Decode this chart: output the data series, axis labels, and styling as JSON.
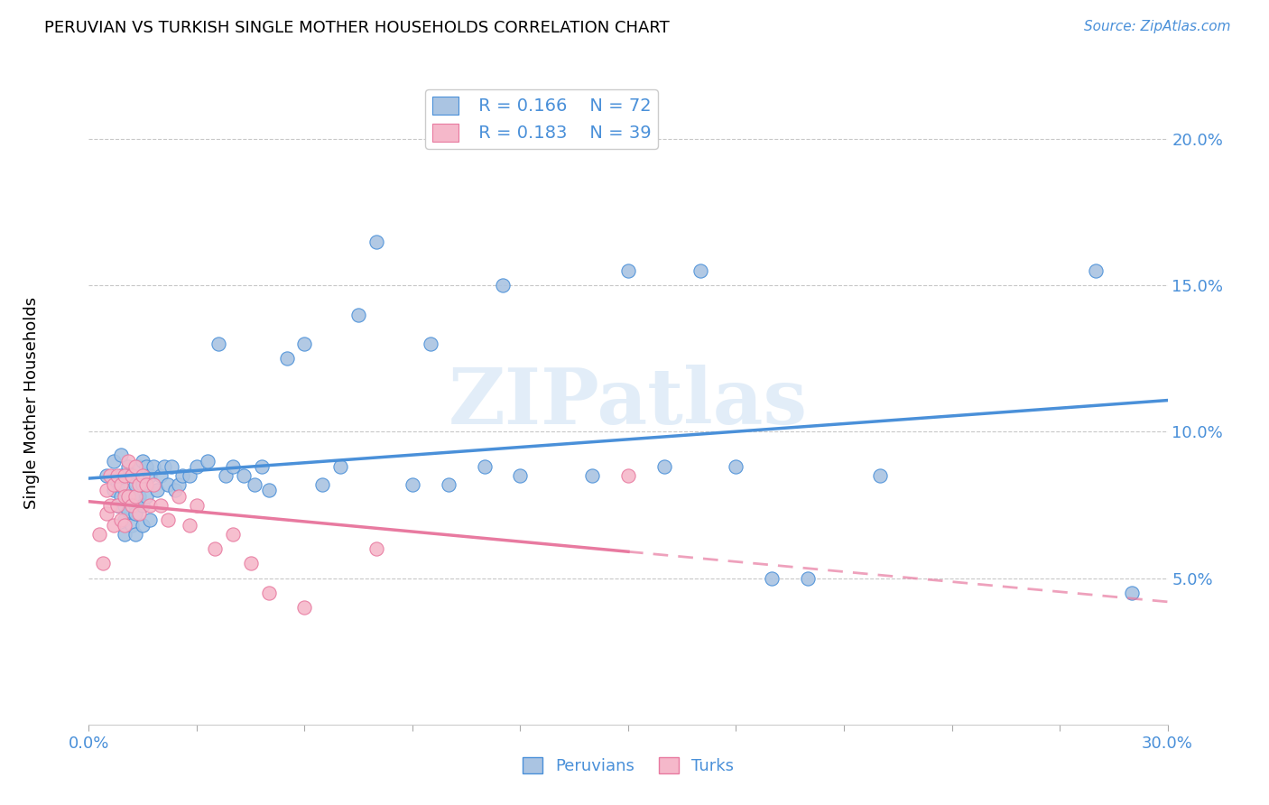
{
  "title": "PERUVIAN VS TURKISH SINGLE MOTHER HOUSEHOLDS CORRELATION CHART",
  "source": "Source: ZipAtlas.com",
  "ylabel": "Single Mother Households",
  "xlim": [
    0.0,
    0.3
  ],
  "ylim": [
    0.0,
    0.22
  ],
  "yticks": [
    0.05,
    0.1,
    0.15,
    0.2
  ],
  "ytick_labels": [
    "5.0%",
    "10.0%",
    "15.0%",
    "20.0%"
  ],
  "xticks": [
    0.0,
    0.03,
    0.06,
    0.09,
    0.12,
    0.15,
    0.18,
    0.21,
    0.24,
    0.27,
    0.3
  ],
  "xtick_labels": [
    "0.0%",
    "",
    "",
    "",
    "",
    "",
    "",
    "",
    "",
    "",
    "30.0%"
  ],
  "peruvian_color": "#aac4e2",
  "turkish_color": "#f5b8ca",
  "peruvian_line_color": "#4a90d9",
  "turkish_line_color": "#e87aa0",
  "tick_color": "#4a90d9",
  "r_peruvian": 0.166,
  "n_peruvian": 72,
  "r_turkish": 0.183,
  "n_turkish": 39,
  "peruvian_x": [
    0.005,
    0.007,
    0.007,
    0.008,
    0.008,
    0.009,
    0.009,
    0.009,
    0.01,
    0.01,
    0.01,
    0.01,
    0.011,
    0.011,
    0.012,
    0.012,
    0.012,
    0.013,
    0.013,
    0.013,
    0.013,
    0.014,
    0.014,
    0.015,
    0.015,
    0.015,
    0.015,
    0.016,
    0.016,
    0.017,
    0.017,
    0.018,
    0.019,
    0.02,
    0.021,
    0.022,
    0.023,
    0.024,
    0.025,
    0.026,
    0.028,
    0.03,
    0.033,
    0.036,
    0.038,
    0.04,
    0.043,
    0.046,
    0.048,
    0.05,
    0.055,
    0.06,
    0.065,
    0.07,
    0.075,
    0.08,
    0.09,
    0.095,
    0.1,
    0.11,
    0.115,
    0.12,
    0.14,
    0.15,
    0.16,
    0.17,
    0.18,
    0.19,
    0.2,
    0.22,
    0.28,
    0.29
  ],
  "peruvian_y": [
    0.085,
    0.08,
    0.09,
    0.075,
    0.082,
    0.078,
    0.085,
    0.092,
    0.08,
    0.075,
    0.07,
    0.065,
    0.088,
    0.073,
    0.085,
    0.078,
    0.068,
    0.082,
    0.075,
    0.072,
    0.065,
    0.088,
    0.078,
    0.082,
    0.09,
    0.075,
    0.068,
    0.088,
    0.078,
    0.085,
    0.07,
    0.088,
    0.08,
    0.085,
    0.088,
    0.082,
    0.088,
    0.08,
    0.082,
    0.085,
    0.085,
    0.088,
    0.09,
    0.13,
    0.085,
    0.088,
    0.085,
    0.082,
    0.088,
    0.08,
    0.125,
    0.13,
    0.082,
    0.088,
    0.14,
    0.165,
    0.082,
    0.13,
    0.082,
    0.088,
    0.15,
    0.085,
    0.085,
    0.155,
    0.088,
    0.155,
    0.088,
    0.05,
    0.05,
    0.085,
    0.155,
    0.045
  ],
  "turkish_x": [
    0.003,
    0.004,
    0.005,
    0.005,
    0.006,
    0.006,
    0.007,
    0.007,
    0.008,
    0.008,
    0.009,
    0.009,
    0.01,
    0.01,
    0.01,
    0.011,
    0.011,
    0.012,
    0.012,
    0.013,
    0.013,
    0.014,
    0.014,
    0.015,
    0.016,
    0.017,
    0.018,
    0.02,
    0.022,
    0.025,
    0.028,
    0.03,
    0.035,
    0.04,
    0.045,
    0.05,
    0.06,
    0.08,
    0.15
  ],
  "turkish_y": [
    0.065,
    0.055,
    0.08,
    0.072,
    0.085,
    0.075,
    0.082,
    0.068,
    0.085,
    0.075,
    0.082,
    0.07,
    0.085,
    0.078,
    0.068,
    0.09,
    0.078,
    0.085,
    0.075,
    0.088,
    0.078,
    0.082,
    0.072,
    0.085,
    0.082,
    0.075,
    0.082,
    0.075,
    0.07,
    0.078,
    0.068,
    0.075,
    0.06,
    0.065,
    0.055,
    0.045,
    0.04,
    0.06,
    0.085
  ]
}
